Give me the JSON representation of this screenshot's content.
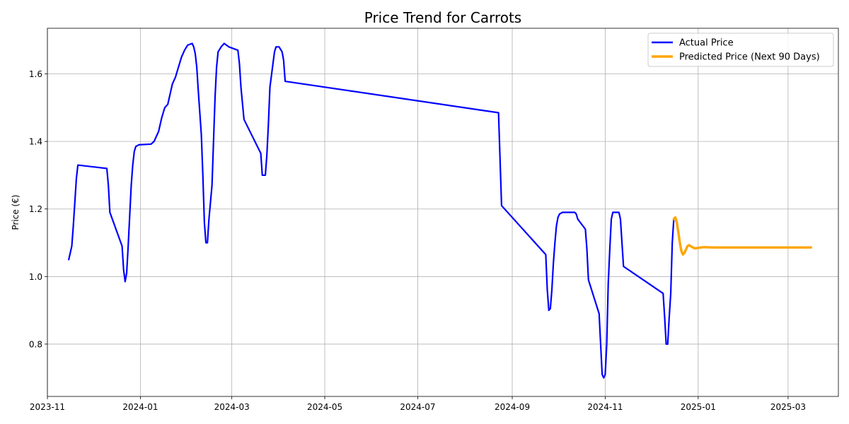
{
  "chart_data": {
    "type": "line",
    "title": "Price Trend for Carrots",
    "xlabel": "",
    "ylabel": "Price (€)",
    "xlim": [
      "2023-11-01",
      "2025-04-03"
    ],
    "ylim": [
      0.645,
      1.735
    ],
    "x_ticks": [
      "2023-11",
      "2024-01",
      "2024-03",
      "2024-05",
      "2024-07",
      "2024-09",
      "2024-11",
      "2025-01",
      "2025-03"
    ],
    "y_ticks": [
      0.8,
      1.0,
      1.2,
      1.4,
      1.6
    ],
    "y_tick_labels": [
      "0.8",
      "1.0",
      "1.2",
      "1.4",
      "1.6"
    ],
    "grid": true,
    "legend_position": "top-right",
    "colors": {
      "actual": "#0000ff",
      "predicted": "#ffa500"
    },
    "series": [
      {
        "name": "Actual Price",
        "color": "#0000ff",
        "points": [
          [
            "2023-11-15",
            1.05
          ],
          [
            "2023-11-17",
            1.09
          ],
          [
            "2023-11-18",
            1.15
          ],
          [
            "2023-11-19",
            1.22
          ],
          [
            "2023-11-20",
            1.29
          ],
          [
            "2023-11-21",
            1.33
          ],
          [
            "2023-12-10",
            1.32
          ],
          [
            "2023-12-11",
            1.27
          ],
          [
            "2023-12-12",
            1.19
          ],
          [
            "2023-12-20",
            1.09
          ],
          [
            "2023-12-21",
            1.02
          ],
          [
            "2023-12-22",
            0.985
          ],
          [
            "2023-12-23",
            1.01
          ],
          [
            "2023-12-24",
            1.09
          ],
          [
            "2023-12-25",
            1.18
          ],
          [
            "2023-12-26",
            1.27
          ],
          [
            "2023-12-27",
            1.33
          ],
          [
            "2023-12-28",
            1.37
          ],
          [
            "2023-12-29",
            1.385
          ],
          [
            "2023-12-31",
            1.39
          ],
          [
            "2024-01-08",
            1.392
          ],
          [
            "2024-01-10",
            1.4
          ],
          [
            "2024-01-13",
            1.43
          ],
          [
            "2024-01-15",
            1.47
          ],
          [
            "2024-01-17",
            1.5
          ],
          [
            "2024-01-19",
            1.51
          ],
          [
            "2024-01-22",
            1.57
          ],
          [
            "2024-01-24",
            1.59
          ],
          [
            "2024-01-26",
            1.62
          ],
          [
            "2024-01-28",
            1.65
          ],
          [
            "2024-01-30",
            1.67
          ],
          [
            "2024-02-01",
            1.685
          ],
          [
            "2024-02-04",
            1.69
          ],
          [
            "2024-02-05",
            1.68
          ],
          [
            "2024-02-06",
            1.66
          ],
          [
            "2024-02-07",
            1.62
          ],
          [
            "2024-02-08",
            1.55
          ],
          [
            "2024-02-10",
            1.42
          ],
          [
            "2024-02-11",
            1.3
          ],
          [
            "2024-02-12",
            1.16
          ],
          [
            "2024-02-13",
            1.1
          ],
          [
            "2024-02-14",
            1.1
          ],
          [
            "2024-02-15",
            1.17
          ],
          [
            "2024-02-17",
            1.27
          ],
          [
            "2024-02-18",
            1.4
          ],
          [
            "2024-02-19",
            1.53
          ],
          [
            "2024-02-20",
            1.62
          ],
          [
            "2024-02-21",
            1.665
          ],
          [
            "2024-02-23",
            1.68
          ],
          [
            "2024-02-25",
            1.69
          ],
          [
            "2024-02-28",
            1.68
          ],
          [
            "2024-03-05",
            1.67
          ],
          [
            "2024-03-06",
            1.63
          ],
          [
            "2024-03-07",
            1.56
          ],
          [
            "2024-03-09",
            1.465
          ],
          [
            "2024-03-20",
            1.365
          ],
          [
            "2024-03-21",
            1.3
          ],
          [
            "2024-03-23",
            1.3
          ],
          [
            "2024-03-24",
            1.36
          ],
          [
            "2024-03-25",
            1.45
          ],
          [
            "2024-03-26",
            1.56
          ],
          [
            "2024-03-28",
            1.63
          ],
          [
            "2024-03-29",
            1.665
          ],
          [
            "2024-03-30",
            1.68
          ],
          [
            "2024-04-01",
            1.68
          ],
          [
            "2024-04-03",
            1.665
          ],
          [
            "2024-04-04",
            1.64
          ],
          [
            "2024-04-05",
            1.578
          ],
          [
            "2024-08-23",
            1.485
          ],
          [
            "2024-08-25",
            1.21
          ],
          [
            "2024-09-23",
            1.065
          ],
          [
            "2024-09-24",
            0.96
          ],
          [
            "2024-09-25",
            0.9
          ],
          [
            "2024-09-26",
            0.905
          ],
          [
            "2024-09-27",
            0.96
          ],
          [
            "2024-09-28",
            1.04
          ],
          [
            "2024-09-29",
            1.1
          ],
          [
            "2024-09-30",
            1.15
          ],
          [
            "2024-10-01",
            1.175
          ],
          [
            "2024-10-02",
            1.185
          ],
          [
            "2024-10-04",
            1.19
          ],
          [
            "2024-10-12",
            1.19
          ],
          [
            "2024-10-13",
            1.185
          ],
          [
            "2024-10-14",
            1.17
          ],
          [
            "2024-10-19",
            1.14
          ],
          [
            "2024-10-20",
            1.08
          ],
          [
            "2024-10-21",
            0.99
          ],
          [
            "2024-10-28",
            0.89
          ],
          [
            "2024-10-29",
            0.8
          ],
          [
            "2024-10-30",
            0.71
          ],
          [
            "2024-10-31",
            0.7
          ],
          [
            "2024-11-01",
            0.71
          ],
          [
            "2024-11-02",
            0.8
          ],
          [
            "2024-11-03",
            0.98
          ],
          [
            "2024-11-04",
            1.08
          ],
          [
            "2024-11-05",
            1.17
          ],
          [
            "2024-11-06",
            1.19
          ],
          [
            "2024-11-10",
            1.19
          ],
          [
            "2024-11-11",
            1.17
          ],
          [
            "2024-11-12",
            1.1
          ],
          [
            "2024-11-13",
            1.03
          ],
          [
            "2024-12-09",
            0.95
          ],
          [
            "2024-12-10",
            0.88
          ],
          [
            "2024-12-11",
            0.8
          ],
          [
            "2024-12-12",
            0.8
          ],
          [
            "2024-12-13",
            0.88
          ],
          [
            "2024-12-14",
            0.95
          ],
          [
            "2024-12-15",
            1.1
          ],
          [
            "2024-12-16",
            1.17
          ]
        ]
      },
      {
        "name": "Predicted Price (Next 90 Days)",
        "color": "#ffa500",
        "points": [
          [
            "2024-12-16",
            1.17
          ],
          [
            "2024-12-17",
            1.175
          ],
          [
            "2024-12-18",
            1.16
          ],
          [
            "2024-12-19",
            1.13
          ],
          [
            "2024-12-20",
            1.1
          ],
          [
            "2024-12-21",
            1.075
          ],
          [
            "2024-12-22",
            1.065
          ],
          [
            "2024-12-23",
            1.07
          ],
          [
            "2024-12-24",
            1.08
          ],
          [
            "2024-12-25",
            1.09
          ],
          [
            "2024-12-26",
            1.093
          ],
          [
            "2024-12-27",
            1.09
          ],
          [
            "2024-12-29",
            1.085
          ],
          [
            "2024-12-30",
            1.083
          ],
          [
            "2025-01-01",
            1.085
          ],
          [
            "2025-01-05",
            1.087
          ],
          [
            "2025-01-10",
            1.086
          ],
          [
            "2025-02-01",
            1.086
          ],
          [
            "2025-03-01",
            1.086
          ],
          [
            "2025-03-16",
            1.086
          ]
        ]
      }
    ]
  }
}
